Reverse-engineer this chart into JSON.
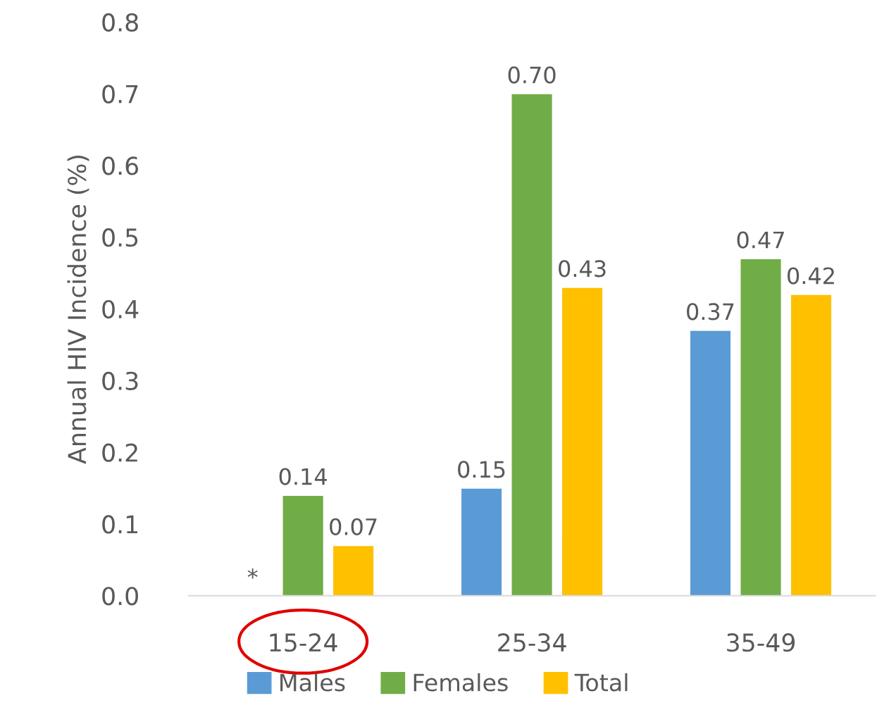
{
  "chart_data": {
    "type": "bar",
    "ylabel": "Annual HIV Incidence (%)",
    "categories": [
      "15-24",
      "25-34",
      "35-49"
    ],
    "series": [
      {
        "name": "Males",
        "color": "#5b9bd5",
        "values": [
          null,
          0.15,
          0.37
        ],
        "value_labels": [
          "*",
          "0.15",
          "0.37"
        ]
      },
      {
        "name": "Females",
        "color": "#70ad47",
        "values": [
          0.14,
          0.7,
          0.47
        ],
        "value_labels": [
          "0.14",
          "0.70",
          "0.47"
        ]
      },
      {
        "name": "Total",
        "color": "#ffc000",
        "values": [
          0.07,
          0.43,
          0.42
        ],
        "value_labels": [
          "0.07",
          "0.43",
          "0.42"
        ]
      }
    ],
    "ylim": [
      0,
      0.8
    ],
    "yticks": [
      {
        "value": 0,
        "label": "0.0"
      },
      0.1,
      0.2,
      0.3,
      0.4,
      0.5,
      0.6,
      0.7,
      0.8
    ],
    "grid": false,
    "legend": "bottom"
  }
}
